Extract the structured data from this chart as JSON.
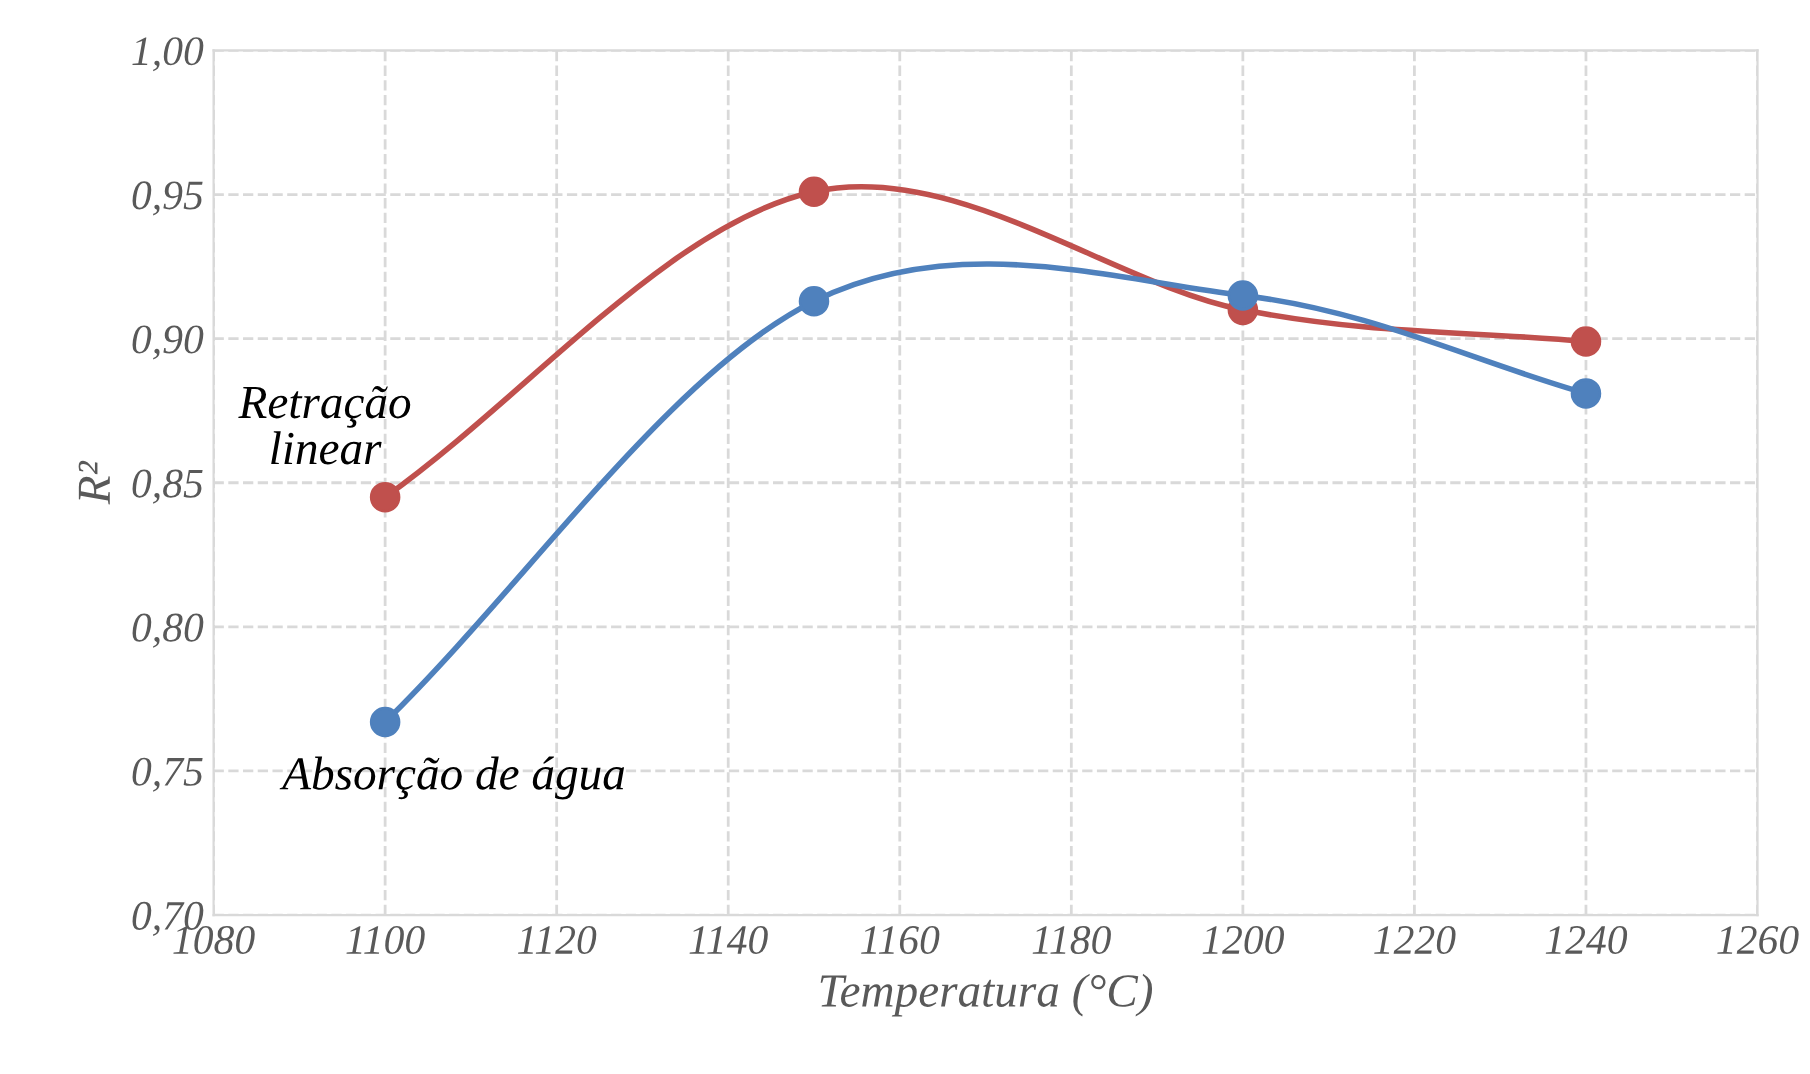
{
  "chart_data": {
    "type": "line",
    "xlabel": "Temperatura (°C)",
    "ylabel": "R²",
    "x": [
      1100,
      1150,
      1200,
      1240
    ],
    "series": [
      {
        "name": "Retração linear",
        "color": "#c0504d",
        "values": [
          0.845,
          0.951,
          0.91,
          0.899
        ]
      },
      {
        "name": "Absorção de água",
        "color": "#4f81bd",
        "values": [
          0.767,
          0.913,
          0.915,
          0.881
        ]
      }
    ],
    "xlim": [
      1080,
      1260
    ],
    "xticks": [
      1080,
      1100,
      1120,
      1140,
      1160,
      1180,
      1200,
      1220,
      1240,
      1260
    ],
    "ylim": [
      0.7,
      1.0
    ],
    "yticks": [
      {
        "value": 0.7,
        "label": "0,70"
      },
      {
        "value": 0.75,
        "label": "0,75"
      },
      {
        "value": 0.8,
        "label": "0,80"
      },
      {
        "value": 0.85,
        "label": "0,85"
      },
      {
        "value": 0.9,
        "label": "0,90"
      },
      {
        "value": 0.95,
        "label": "0,95"
      },
      {
        "value": 1.0,
        "label": "1,00"
      }
    ],
    "grid": true,
    "legend": false,
    "marker": "circle",
    "line_style": "solid"
  }
}
